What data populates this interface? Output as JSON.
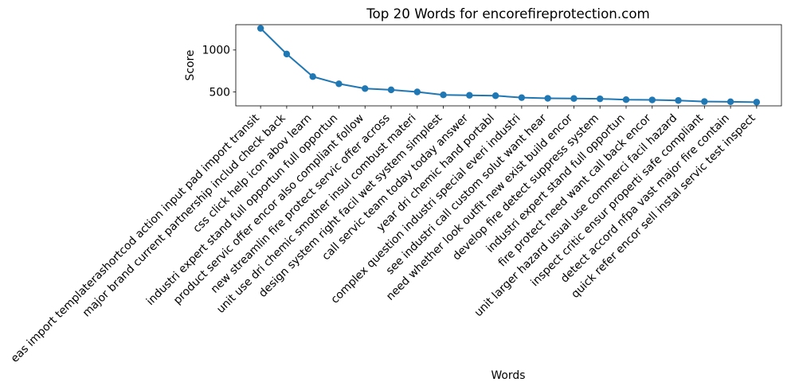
{
  "chart_data": {
    "type": "line",
    "title": "Top 20 Words for encorefireprotection.com",
    "xlabel": "Words",
    "ylabel": "Score",
    "categories": [
      "eas import templaterashortcod action input pad import transit",
      "major brand current partnership includ check back",
      "css click help icon abov learn",
      "industri expert stand full opportun full opportun",
      "product servic offer encor also compliant follow",
      "new streamlin fire protect servic offer across",
      "unit use dri chemic smother insul combust materi",
      "design system right facil wet system simplest",
      "call servic team today today answer",
      "year dri chemic hand portabl",
      "complex question industri special everi industri",
      "see industri call custom solut want hear",
      "need whether look outfit new exist build encor",
      "develop fire detect suppress system",
      "industri expert stand full opportun",
      "fire protect need want call back encor",
      "unit larger hazard usual use commerci facil hazard",
      "inspect critic ensur properti safe compliant",
      "detect accord nfpa vast major fire contain",
      "quick refer encor sell instal servic test inspect"
    ],
    "values": [
      1258,
      952,
      683,
      597,
      540,
      525,
      500,
      465,
      460,
      455,
      432,
      424,
      422,
      418,
      408,
      405,
      398,
      385,
      383,
      378
    ],
    "ylim": [
      334,
      1302
    ],
    "yticks": [
      500,
      1000
    ],
    "grid": false,
    "legend": "none",
    "color": "#1f77b4"
  }
}
